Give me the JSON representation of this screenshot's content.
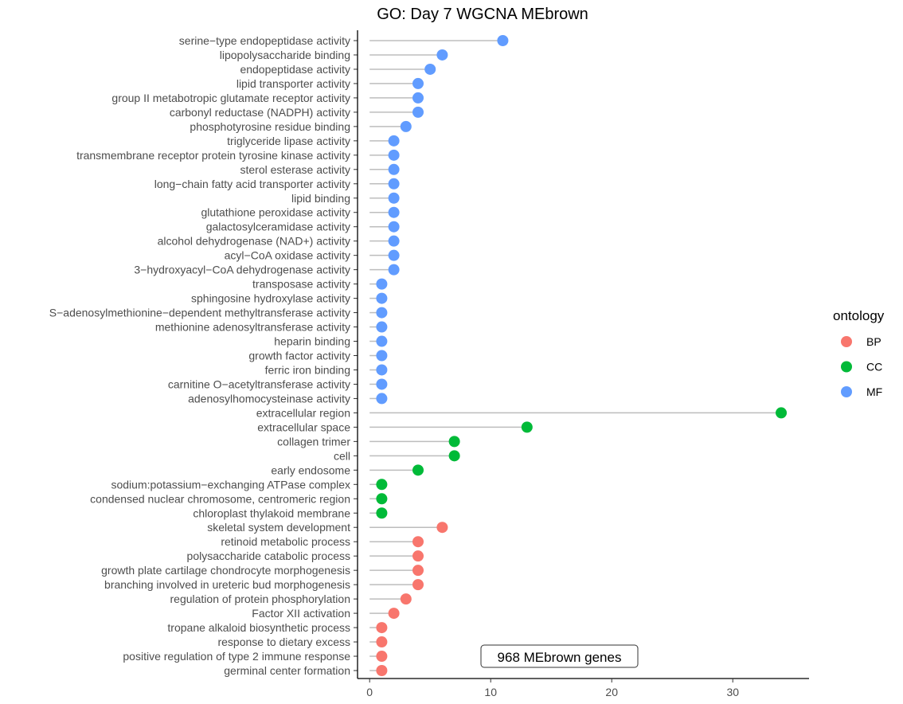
{
  "chart_data": {
    "type": "lollipop",
    "title": "GO: Day 7 WGCNA MEbrown",
    "xlabel": "",
    "ylabel": "",
    "xlim": [
      -1,
      36.3
    ],
    "xticks": [
      0,
      10,
      20,
      30
    ],
    "grid": false,
    "legend": {
      "title": "ontology",
      "position": "right",
      "entries": [
        {
          "name": "BP",
          "color": "#F8766D"
        },
        {
          "name": "CC",
          "color": "#00BA38"
        },
        {
          "name": "MF",
          "color": "#619CFF"
        }
      ]
    },
    "annotation": "968 MEbrown genes",
    "categories": [
      "serine−type endopeptidase activity",
      "lipopolysaccharide binding",
      "endopeptidase activity",
      "lipid transporter activity",
      "group II metabotropic glutamate receptor activity",
      "carbonyl reductase (NADPH) activity",
      "phosphotyrosine residue binding",
      "triglyceride lipase activity",
      "transmembrane receptor protein tyrosine kinase activity",
      "sterol esterase activity",
      "long−chain fatty acid transporter activity",
      "lipid binding",
      "glutathione peroxidase activity",
      "galactosylceramidase activity",
      "alcohol dehydrogenase (NAD+) activity",
      "acyl−CoA oxidase activity",
      "3−hydroxyacyl−CoA dehydrogenase activity",
      "transposase activity",
      "sphingosine hydroxylase activity",
      "S−adenosylmethionine−dependent methyltransferase activity",
      "methionine adenosyltransferase activity",
      "heparin binding",
      "growth factor activity",
      "ferric iron binding",
      "carnitine O−acetyltransferase activity",
      "adenosylhomocysteinase activity",
      "extracellular region",
      "extracellular space",
      "collagen trimer",
      "cell",
      "early endosome",
      "sodium:potassium−exchanging ATPase complex",
      "condensed nuclear chromosome, centromeric region",
      "chloroplast thylakoid membrane",
      "skeletal system development",
      "retinoid metabolic process",
      "polysaccharide catabolic process",
      "growth plate cartilage chondrocyte morphogenesis",
      "branching involved in ureteric bud morphogenesis",
      "regulation of protein phosphorylation",
      "Factor XII activation",
      "tropane alkaloid biosynthetic process",
      "response to dietary excess",
      "positive regulation of type 2 immune response",
      "germinal center formation"
    ],
    "values": [
      11,
      6,
      5,
      4,
      4,
      4,
      3,
      2,
      2,
      2,
      2,
      2,
      2,
      2,
      2,
      2,
      2,
      1,
      1,
      1,
      1,
      1,
      1,
      1,
      1,
      1,
      34,
      13,
      7,
      7,
      4,
      1,
      1,
      1,
      6,
      4,
      4,
      4,
      4,
      3,
      2,
      1,
      1,
      1,
      1
    ],
    "ontology": [
      "MF",
      "MF",
      "MF",
      "MF",
      "MF",
      "MF",
      "MF",
      "MF",
      "MF",
      "MF",
      "MF",
      "MF",
      "MF",
      "MF",
      "MF",
      "MF",
      "MF",
      "MF",
      "MF",
      "MF",
      "MF",
      "MF",
      "MF",
      "MF",
      "MF",
      "MF",
      "CC",
      "CC",
      "CC",
      "CC",
      "CC",
      "CC",
      "CC",
      "CC",
      "BP",
      "BP",
      "BP",
      "BP",
      "BP",
      "BP",
      "BP",
      "BP",
      "BP",
      "BP",
      "BP"
    ]
  }
}
